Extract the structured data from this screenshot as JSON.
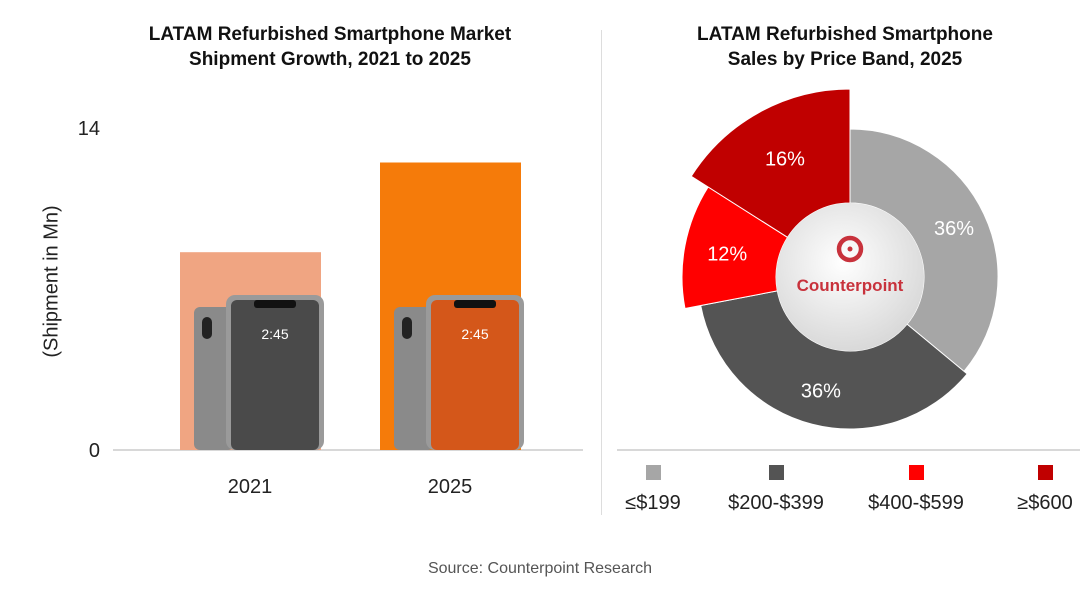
{
  "chart_data": [
    {
      "type": "bar",
      "title": "LATAM Refurbished Smartphone Market Shipment Growth, 2021 to 2025",
      "title_lines": [
        "LATAM Refurbished Smartphone Market",
        "Shipment Growth, 2021 to 2025"
      ],
      "ylabel": "(Shipment in Mn)",
      "categories": [
        "2021",
        "2025"
      ],
      "values": [
        8.6,
        12.5
      ],
      "ylim": [
        0,
        14
      ],
      "yticks": [
        "0",
        "14"
      ],
      "colors": [
        "#f0a582",
        "#f57b0a"
      ],
      "grid": false
    },
    {
      "type": "pie",
      "title": "LATAM Refurbished Smartphone Sales by Price Band, 2025",
      "title_lines": [
        "LATAM Refurbished Smartphone",
        "Sales by Price Band, 2025"
      ],
      "categories": [
        "≤$199",
        "$200-$399",
        "$400-$599",
        "≥$600"
      ],
      "values": [
        36,
        36,
        12,
        16
      ],
      "labels": [
        "36%",
        "36%",
        "12%",
        "16%"
      ],
      "colors": [
        "#a6a6a6",
        "#545454",
        "#ff0000",
        "#c00000"
      ],
      "center_logo": "Counterpoint",
      "legend": "bottom"
    }
  ],
  "source": "Source: Counterpoint Research",
  "watermark": "Counterpoint"
}
